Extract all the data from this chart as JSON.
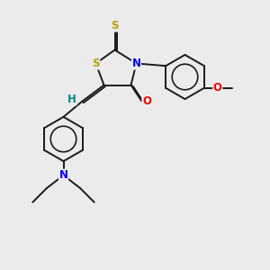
{
  "background_color": "#ebebeb",
  "atom_colors": {
    "S": "#b8a000",
    "N": "#0000ee",
    "O": "#ee0000",
    "C": "#000000",
    "H": "#008888"
  },
  "bond_color": "#1a1a1a",
  "figure_size": [
    3.0,
    3.0
  ],
  "dpi": 100,
  "xlim": [
    0,
    10
  ],
  "ylim": [
    0,
    10
  ],
  "lw": 1.4,
  "fontsize": 8.5
}
